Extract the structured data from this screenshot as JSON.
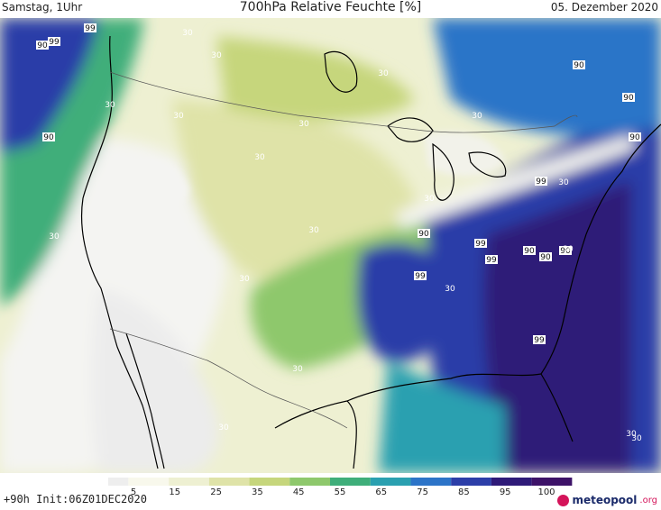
{
  "header": {
    "day_time": "Samstag, 1Uhr",
    "title": "700hPa Relative Feuchte [%]",
    "date": "05. Dezember 2020"
  },
  "footer": {
    "init": "+90h Init:06Z01DEC2020",
    "logo_main": "meteopool",
    "logo_tld": ".org"
  },
  "colorbar": {
    "ticks": [
      "5",
      "15",
      "25",
      "35",
      "45",
      "55",
      "65",
      "75",
      "85",
      "95",
      "100"
    ],
    "colors": [
      "#eeeeee",
      "#f8f8ec",
      "#eef0d2",
      "#dfe3a8",
      "#c6d67c",
      "#8ec86c",
      "#3fae7a",
      "#2aa0b0",
      "#2c74c8",
      "#2c3ea8",
      "#2e1a78",
      "#3d1268"
    ]
  },
  "contour_labels": [
    {
      "text": "99"
    },
    {
      "text": "90"
    },
    {
      "text": "99"
    },
    {
      "text": "30"
    },
    {
      "text": "30"
    },
    {
      "text": "30"
    },
    {
      "text": "30"
    },
    {
      "text": "30"
    },
    {
      "text": "90"
    },
    {
      "text": "30"
    },
    {
      "text": "90"
    },
    {
      "text": "30"
    },
    {
      "text": "30"
    },
    {
      "text": "99"
    },
    {
      "text": "90"
    },
    {
      "text": "90"
    },
    {
      "text": "90"
    },
    {
      "text": "99"
    },
    {
      "text": "90"
    },
    {
      "text": "99"
    },
    {
      "text": "90"
    },
    {
      "text": "90"
    },
    {
      "text": "30"
    },
    {
      "text": "30"
    },
    {
      "text": "30"
    },
    {
      "text": "30"
    },
    {
      "text": "99"
    },
    {
      "text": "30"
    },
    {
      "text": "99"
    },
    {
      "text": "30"
    },
    {
      "text": "30"
    },
    {
      "text": "30"
    },
    {
      "text": "30"
    },
    {
      "text": "30"
    },
    {
      "text": "30"
    }
  ]
}
